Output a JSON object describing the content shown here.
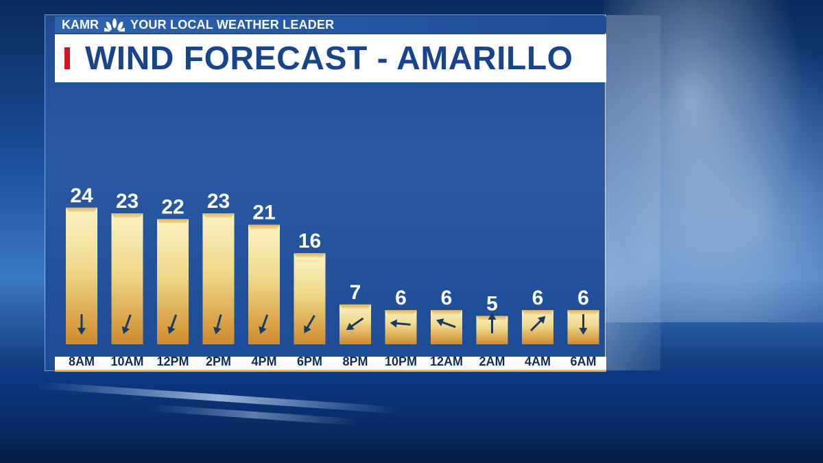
{
  "header": {
    "station": "KAMR",
    "slogan": "YOUR LOCAL WEATHER LEADER",
    "logo_icon": "nbc-peacock-icon"
  },
  "title": "WIND FORECAST - AMARILLO",
  "colors": {
    "accent_red": "#d2141e",
    "title_blue": "#17448a",
    "bar_light": "#f7eeb4",
    "bar_dark": "#d58f2c",
    "arrow": "#183a63"
  },
  "chart_data": {
    "type": "bar",
    "title": "WIND FORECAST - AMARILLO",
    "categories": [
      "8AM",
      "10AM",
      "12PM",
      "2PM",
      "4PM",
      "6PM",
      "8PM",
      "10PM",
      "12AM",
      "2AM",
      "4AM",
      "6AM"
    ],
    "values": [
      24,
      23,
      22,
      23,
      21,
      16,
      7,
      6,
      6,
      5,
      6,
      6
    ],
    "arrow_direction_deg": [
      180,
      200,
      200,
      195,
      200,
      210,
      235,
      275,
      290,
      0,
      45,
      180
    ],
    "arrow_icon": "wind-direction-arrow-icon",
    "ylim": [
      0,
      24
    ],
    "grid": false,
    "legend": "none"
  }
}
